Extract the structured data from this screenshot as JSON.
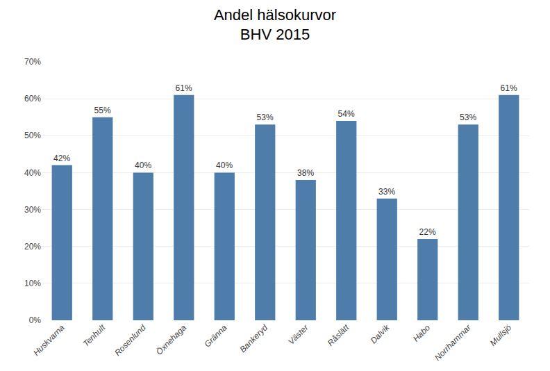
{
  "chart_data": {
    "type": "bar",
    "title": "Andel hälsokurvor\nBHV 2015",
    "categories": [
      "Huskvarna",
      "Tenhult",
      "Rosenlund",
      "Öxnehaga",
      "Gränna",
      "Bankeryd",
      "Väster",
      "Råslätt",
      "Dalvik",
      "Habo",
      "Norrhammar",
      "Mullsjö"
    ],
    "values": [
      42,
      55,
      40,
      61,
      40,
      53,
      38,
      54,
      33,
      22,
      53,
      61
    ],
    "value_labels": [
      "42%",
      "55%",
      "40%",
      "61%",
      "40%",
      "53%",
      "38%",
      "54%",
      "33%",
      "22%",
      "53%",
      "61%"
    ],
    "data_labels": true,
    "color": "#4e7dab",
    "ylim": [
      0,
      70
    ],
    "yticks": [
      {
        "value": 0,
        "label": "0%"
      },
      {
        "value": 10,
        "label": "10%"
      },
      {
        "value": 20,
        "label": "20%"
      },
      {
        "value": 30,
        "label": "30%"
      },
      {
        "value": 40,
        "label": "40%"
      },
      {
        "value": 50,
        "label": "50%"
      },
      {
        "value": 60,
        "label": "60%"
      },
      {
        "value": 70,
        "label": "70%"
      }
    ],
    "grid": true
  }
}
